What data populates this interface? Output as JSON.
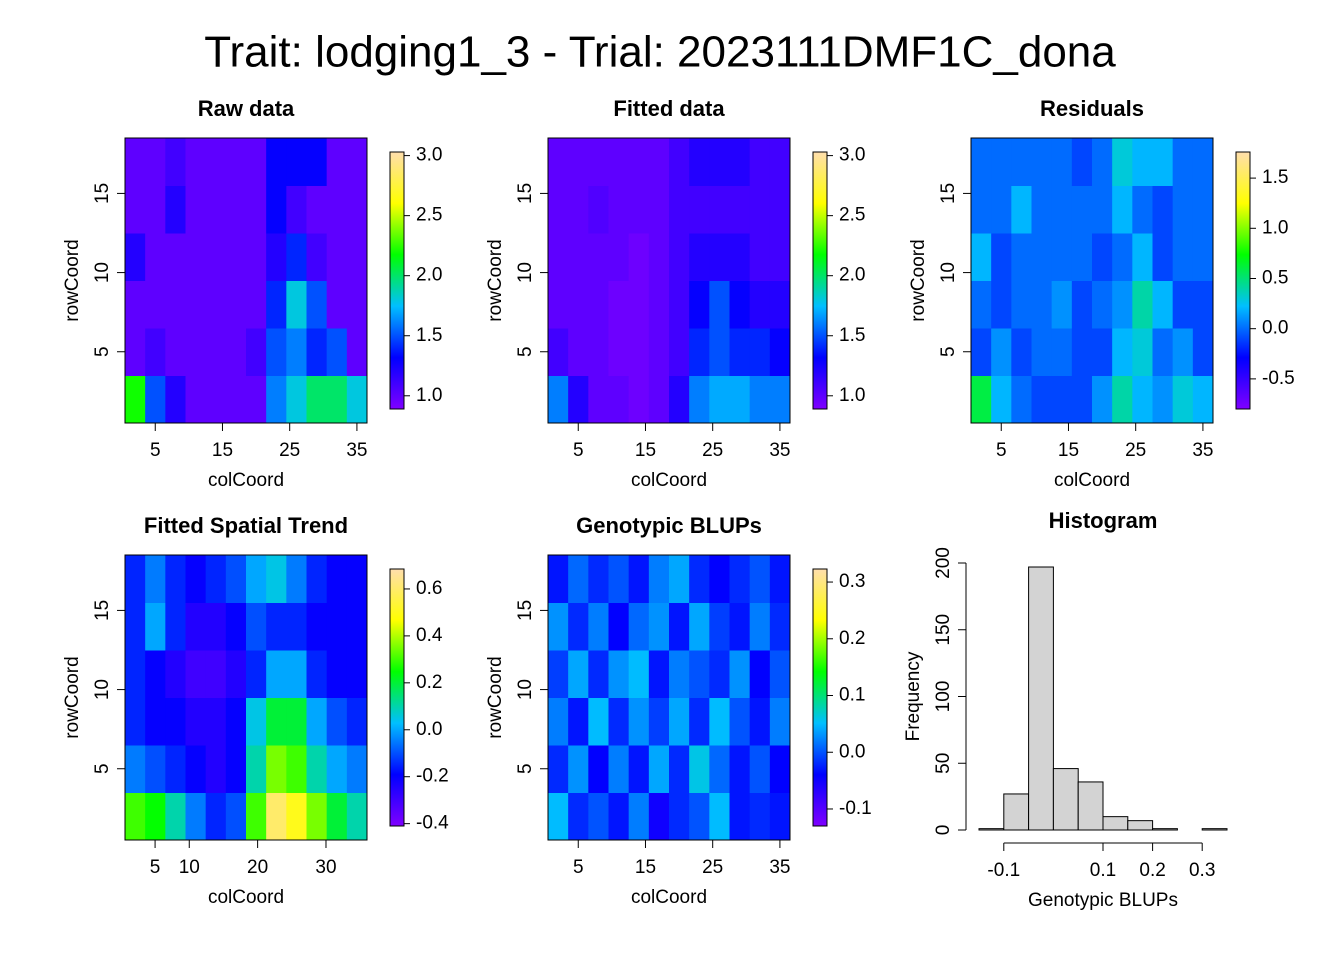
{
  "title": "Trait: lodging1_3 - Trial: 2023111DMF1C_dona",
  "palette": [
    "#7f00ff",
    "#0000ff",
    "#00bfff",
    "#00ff00",
    "#ffff00",
    "#ffdead"
  ],
  "chart_data": [
    {
      "type": "heatmap",
      "title": "Raw data",
      "xlabel": "colCoord",
      "ylabel": "rowCoord",
      "xlim": [
        0.5,
        36.5
      ],
      "ylim": [
        0.5,
        18.5
      ],
      "xticks": [
        5,
        15,
        25,
        35
      ],
      "yticks": [
        5,
        10,
        15
      ],
      "zlim": [
        0.89,
        3.03
      ],
      "zticks": [
        {
          "value": 1,
          "label": "1.0"
        },
        1.5,
        {
          "value": 2,
          "label": "2.0"
        },
        2.5,
        {
          "value": 3,
          "label": "3.0"
        }
      ],
      "z": [
        [
          2.2,
          1.5,
          1.2,
          1.0,
          1.0,
          1.0,
          1.0,
          1.6,
          1.8,
          2.0,
          2.0,
          1.8
        ],
        [
          1.0,
          1.1,
          1.0,
          1.0,
          1.0,
          1.0,
          1.1,
          1.5,
          1.6,
          1.4,
          1.5,
          1.0
        ],
        [
          1.0,
          1.0,
          1.0,
          1.0,
          1.0,
          1.0,
          1.0,
          1.4,
          1.8,
          1.5,
          1.0,
          1.0
        ],
        [
          1.2,
          1.0,
          1.0,
          1.0,
          1.0,
          1.0,
          1.0,
          1.2,
          1.4,
          1.1,
          1.0,
          1.0
        ],
        [
          1.0,
          1.0,
          1.2,
          1.0,
          1.0,
          1.0,
          1.0,
          1.3,
          1.1,
          1.0,
          1.0,
          1.0
        ],
        [
          1.0,
          1.0,
          1.1,
          1.0,
          1.0,
          1.0,
          1.0,
          1.3,
          1.3,
          1.3,
          1.0,
          1.0
        ]
      ]
    },
    {
      "type": "heatmap",
      "title": "Fitted data",
      "xlabel": "colCoord",
      "ylabel": "rowCoord",
      "xlim": [
        0.5,
        36.5
      ],
      "ylim": [
        0.5,
        18.5
      ],
      "xticks": [
        5,
        15,
        25,
        35
      ],
      "yticks": [
        5,
        10,
        15
      ],
      "zlim": [
        0.89,
        3.03
      ],
      "zticks": [
        {
          "value": 1,
          "label": "1.0"
        },
        1.5,
        {
          "value": 2,
          "label": "2.0"
        },
        2.5,
        {
          "value": 3,
          "label": "3.0"
        }
      ],
      "z": [
        [
          1.6,
          1.2,
          1.0,
          1.0,
          0.95,
          1.0,
          1.2,
          1.6,
          1.7,
          1.7,
          1.6,
          1.6
        ],
        [
          1.1,
          1.0,
          1.0,
          0.95,
          0.95,
          1.0,
          1.1,
          1.4,
          1.5,
          1.4,
          1.4,
          1.3
        ],
        [
          1.0,
          1.0,
          1.0,
          0.95,
          0.95,
          1.0,
          1.1,
          1.3,
          1.5,
          1.3,
          1.2,
          1.2
        ],
        [
          1.0,
          1.0,
          1.0,
          1.0,
          0.95,
          1.0,
          1.1,
          1.2,
          1.2,
          1.2,
          1.1,
          1.1
        ],
        [
          1.0,
          1.0,
          1.05,
          1.0,
          1.0,
          1.0,
          1.1,
          1.1,
          1.1,
          1.1,
          1.1,
          1.1
        ],
        [
          1.0,
          1.0,
          1.0,
          1.0,
          1.0,
          1.0,
          1.1,
          1.2,
          1.2,
          1.2,
          1.1,
          1.1
        ]
      ]
    },
    {
      "type": "heatmap",
      "title": "Residuals",
      "xlabel": "colCoord",
      "ylabel": "rowCoord",
      "xlim": [
        0.5,
        36.5
      ],
      "ylim": [
        0.5,
        18.5
      ],
      "xticks": [
        5,
        15,
        25,
        35
      ],
      "yticks": [
        5,
        10,
        15
      ],
      "zlim": [
        -0.8,
        1.76
      ],
      "zticks": [
        -0.5,
        {
          "value": 0,
          "label": "0.0"
        },
        0.5,
        {
          "value": 1,
          "label": "1.0"
        },
        1.5
      ],
      "z": [
        [
          0.6,
          0.2,
          0.0,
          -0.1,
          -0.1,
          -0.1,
          0.1,
          0.4,
          0.2,
          0.1,
          0.3,
          0.2
        ],
        [
          -0.1,
          0.1,
          -0.1,
          0.0,
          0.0,
          -0.1,
          -0.1,
          0.2,
          0.3,
          0.0,
          0.1,
          -0.1
        ],
        [
          0.0,
          -0.1,
          0.0,
          0.0,
          0.1,
          -0.1,
          0.0,
          0.1,
          0.4,
          0.2,
          -0.1,
          -0.1
        ],
        [
          0.2,
          -0.1,
          0.0,
          0.0,
          0.0,
          0.0,
          -0.1,
          0.0,
          0.2,
          -0.1,
          0.0,
          0.0
        ],
        [
          0.0,
          0.0,
          0.2,
          0.0,
          0.0,
          0.0,
          0.0,
          0.2,
          0.0,
          -0.1,
          0.0,
          0.0
        ],
        [
          0.0,
          0.0,
          0.0,
          0.0,
          0.0,
          -0.1,
          0.0,
          0.3,
          0.2,
          0.2,
          0.0,
          0.0
        ]
      ]
    },
    {
      "type": "heatmap",
      "title": "Fitted Spatial Trend",
      "xlabel": "colCoord",
      "ylabel": "rowCoord",
      "xlim": [
        0.6,
        36
      ],
      "ylim": [
        0.5,
        18.5
      ],
      "xticks": [
        5,
        10,
        20,
        30
      ],
      "yticks": [
        5,
        10,
        15
      ],
      "zlim": [
        -0.41,
        0.685
      ],
      "zticks": [
        -0.4,
        -0.2,
        {
          "value": 0,
          "label": "0.0"
        },
        0.2,
        0.4,
        0.6
      ],
      "z": [
        [
          0.3,
          0.25,
          0.1,
          -0.05,
          -0.15,
          -0.1,
          0.3,
          0.6,
          0.5,
          0.35,
          0.2,
          0.1
        ],
        [
          -0.05,
          -0.1,
          -0.15,
          -0.2,
          -0.25,
          -0.2,
          0.1,
          0.35,
          0.3,
          0.1,
          0.0,
          -0.05
        ],
        [
          -0.15,
          -0.2,
          -0.2,
          -0.25,
          -0.25,
          -0.2,
          0.05,
          0.2,
          0.2,
          0.0,
          -0.1,
          -0.15
        ],
        [
          -0.15,
          -0.2,
          -0.25,
          -0.3,
          -0.3,
          -0.25,
          -0.15,
          0.0,
          0.0,
          -0.15,
          -0.2,
          -0.2
        ],
        [
          -0.15,
          0.0,
          -0.15,
          -0.25,
          -0.25,
          -0.2,
          -0.1,
          -0.15,
          -0.15,
          -0.2,
          -0.2,
          -0.2
        ],
        [
          -0.15,
          -0.05,
          -0.15,
          -0.2,
          -0.15,
          -0.1,
          0.0,
          0.05,
          -0.05,
          -0.15,
          -0.2,
          -0.2
        ]
      ]
    },
    {
      "type": "heatmap",
      "title": "Genotypic BLUPs",
      "xlabel": "colCoord",
      "ylabel": "rowCoord",
      "xlim": [
        0.5,
        36.5
      ],
      "ylim": [
        0.5,
        18.5
      ],
      "xticks": [
        5,
        15,
        25,
        35
      ],
      "yticks": [
        5,
        10,
        15
      ],
      "zlim": [
        -0.13,
        0.323
      ],
      "zticks": [
        -0.1,
        {
          "value": 0,
          "label": "0.0"
        },
        0.1,
        0.2,
        0.3
      ],
      "z": [
        [
          0.05,
          -0.02,
          0.0,
          -0.03,
          0.02,
          -0.05,
          -0.02,
          0.0,
          0.05,
          -0.03,
          -0.02,
          -0.03
        ],
        [
          -0.02,
          0.03,
          -0.04,
          0.02,
          -0.03,
          0.04,
          -0.02,
          0.06,
          0.01,
          -0.03,
          0.0,
          -0.04
        ],
        [
          0.02,
          -0.03,
          0.05,
          -0.02,
          0.03,
          -0.01,
          0.04,
          -0.02,
          0.05,
          0.0,
          -0.03,
          0.02
        ],
        [
          -0.01,
          0.04,
          -0.02,
          0.03,
          0.05,
          -0.03,
          0.02,
          0.0,
          -0.02,
          0.03,
          -0.04,
          0.0
        ],
        [
          0.03,
          -0.02,
          0.02,
          -0.04,
          0.01,
          0.03,
          -0.03,
          0.04,
          -0.01,
          -0.03,
          0.02,
          -0.02
        ],
        [
          -0.03,
          0.01,
          -0.02,
          0.0,
          -0.03,
          0.02,
          0.04,
          -0.02,
          -0.04,
          -0.02,
          0.0,
          -0.03
        ]
      ]
    },
    {
      "type": "histogram",
      "title": "Histogram",
      "xlabel": "Genotypic BLUPs",
      "ylabel": "Frequency",
      "bins": [
        -0.15,
        -0.1,
        -0.05,
        0,
        0.05,
        0.1,
        0.15,
        0.2,
        0.25,
        0.3,
        0.35
      ],
      "counts": [
        1,
        27,
        197,
        46,
        36,
        10,
        7,
        1,
        0,
        1
      ],
      "color": "#d3d3d3",
      "xlim": [
        -0.15,
        0.35
      ],
      "ylim": [
        0,
        200
      ],
      "xticks": [
        -0.1,
        0.1,
        0.2,
        0.3
      ],
      "yticks": [
        0,
        50,
        100,
        150,
        200
      ]
    }
  ]
}
